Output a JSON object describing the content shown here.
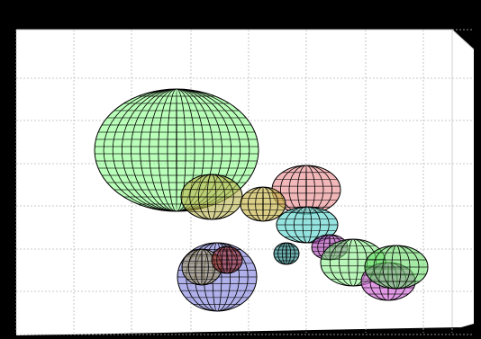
{
  "viewer": {
    "frame_color": "#000000",
    "plot_background": "#ffffff",
    "grid_color": "#b8b8b8",
    "mesh_color": "#000000",
    "grid_visible": true
  },
  "ellipsoids": [
    {
      "id": "large-green",
      "color": "#7fff7f",
      "opacity": 0.55
    },
    {
      "id": "olive",
      "color": "#b7b34a",
      "opacity": 0.6
    },
    {
      "id": "salmon",
      "color": "#e9878a",
      "opacity": 0.6
    },
    {
      "id": "tan",
      "color": "#c8b347",
      "opacity": 0.65
    },
    {
      "id": "cyan",
      "color": "#5ed6cf",
      "opacity": 0.65
    },
    {
      "id": "dark-teal",
      "color": "#2f8d8d",
      "opacity": 0.7
    },
    {
      "id": "purple",
      "color": "#b147b8",
      "opacity": 0.65
    },
    {
      "id": "light-green-right",
      "color": "#7fef7f",
      "opacity": 0.55
    },
    {
      "id": "green-far-right",
      "color": "#5bd95b",
      "opacity": 0.55
    },
    {
      "id": "magenta-right",
      "color": "#d266d8",
      "opacity": 0.65
    },
    {
      "id": "blue",
      "color": "#6f6fd8",
      "opacity": 0.55
    },
    {
      "id": "maroon",
      "color": "#9c2d2d",
      "opacity": 0.6
    },
    {
      "id": "khaki",
      "color": "#a59a61",
      "opacity": 0.55
    }
  ]
}
